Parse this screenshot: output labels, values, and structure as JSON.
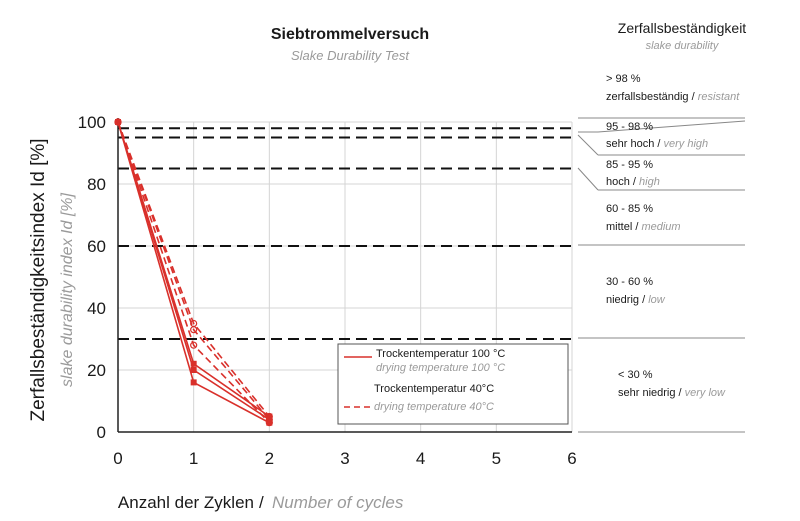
{
  "chart_data": {
    "type": "line",
    "title": "Siebtrommelversuch",
    "subtitle": "Slake Durability Test",
    "xlabel": "Anzahl der Zyklen",
    "xlabel_en": "Number of cycles",
    "ylabel": "Zerfallsbeständigkeitsindex Id [%]",
    "ylabel_en": "slake durability index Id [%]",
    "xlim": [
      0,
      6
    ],
    "ylim": [
      0,
      100
    ],
    "x_ticks": [
      "0",
      "1",
      "2",
      "3",
      "4",
      "5",
      "6"
    ],
    "y_ticks": [
      "0",
      "20",
      "40",
      "60",
      "80",
      "100"
    ],
    "grid": true,
    "reference_lines": [
      98,
      95,
      85,
      60,
      30
    ],
    "series": [
      {
        "name": "Trockentemperatur 100 °C / drying temperature 100 °C",
        "style": "solid",
        "x": [
          0,
          1,
          2
        ],
        "y": [
          100,
          22,
          5
        ]
      },
      {
        "name": "Trockentemperatur 100 °C / drying temperature 100 °C",
        "style": "solid",
        "x": [
          0,
          1,
          2
        ],
        "y": [
          100,
          16,
          3
        ]
      },
      {
        "name": "Trockentemperatur 100 °C / drying temperature 100 °C",
        "style": "solid",
        "x": [
          0,
          1,
          2
        ],
        "y": [
          100,
          20,
          4
        ]
      },
      {
        "name": "Trockentemperatur 40 °C / drying temperature 40 °C",
        "style": "dashed",
        "x": [
          0,
          1,
          2
        ],
        "y": [
          100,
          35,
          5
        ]
      },
      {
        "name": "Trockentemperatur 40 °C / drying temperature 40 °C",
        "style": "dashed",
        "x": [
          0,
          1,
          2
        ],
        "y": [
          100,
          33,
          4
        ]
      },
      {
        "name": "Trockentemperatur 40 °C / drying temperature 40 °C",
        "style": "dashed",
        "x": [
          0,
          1,
          2
        ],
        "y": [
          100,
          28,
          3
        ]
      }
    ],
    "legend": {
      "placement": "lower-right",
      "items": [
        {
          "de": "Trockentemperatur 100 °C",
          "en": "drying temperature 100 °C",
          "style": "solid"
        },
        {
          "de": "Trockentemperatur 40°C",
          "en": "drying temperature 40°C",
          "style": "dashed"
        }
      ]
    },
    "series_color": "#d9302b"
  },
  "classification": {
    "title": "Zerfallsbeständigkeit",
    "subtitle": "slake durability",
    "classes": [
      {
        "range": "> 98 %",
        "de": "zerfallsbeständig",
        "en": "resistant"
      },
      {
        "range": "95 - 98 %",
        "de": "sehr hoch",
        "en": "very high"
      },
      {
        "range": "85 - 95 %",
        "de": "hoch",
        "en": "high"
      },
      {
        "range": "60 - 85 %",
        "de": "mittel",
        "en": "medium"
      },
      {
        "range": "30 - 60 %",
        "de": "niedrig",
        "en": "low"
      },
      {
        "range": "< 30 %",
        "de": "sehr niedrig",
        "en": "very low"
      }
    ]
  }
}
